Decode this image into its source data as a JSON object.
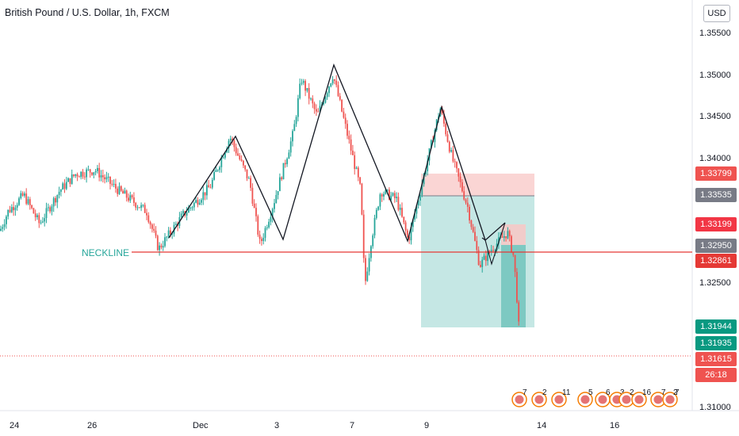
{
  "chart_data": {
    "type": "candlestick",
    "title": "British Pound / U.S. Dollar, 1h, FXCM",
    "currency": "USD",
    "ylim": [
      1.31,
      1.356
    ],
    "yticks": [
      "1.35500",
      "1.35000",
      "1.34500",
      "1.34000",
      "1.32500",
      "1.31000"
    ],
    "xticks": [
      "24",
      "26",
      "Dec",
      "3",
      "7",
      "9",
      "14",
      "16"
    ],
    "price_labels": [
      {
        "value": "1.33799",
        "kind": "stop"
      },
      {
        "value": "1.33535",
        "kind": "entry"
      },
      {
        "value": "1.33199",
        "kind": "level"
      },
      {
        "value": "1.32950",
        "kind": "close"
      },
      {
        "value": "1.32861",
        "kind": "neckline"
      },
      {
        "value": "1.31944",
        "kind": "target"
      },
      {
        "value": "1.31935",
        "kind": "target2"
      },
      {
        "value": "1.31615",
        "kind": "current"
      },
      {
        "value": "26:18",
        "kind": "countdown"
      }
    ],
    "annotations": {
      "neckline": "NECKLINE"
    },
    "neckline_price": 1.32861,
    "current_price": 1.31615,
    "pattern_points": [
      [
        1.3293,
        1.3373
      ],
      [
        1.3427,
        1.3293
      ],
      [
        1.3293,
        1.3513
      ],
      [
        1.3513,
        1.3388
      ],
      [
        1.3388,
        1.33
      ],
      [
        1.33,
        1.3463
      ],
      [
        1.3463,
        1.3316
      ],
      [
        1.3316,
        1.3268
      ],
      [
        1.3268,
        1.3311
      ]
    ],
    "event_badges": [
      "7",
      "2",
      "11",
      "5",
      "6",
      "3",
      "2",
      "16",
      "7",
      "2",
      "7"
    ]
  },
  "colors": {
    "up": "#26a69a",
    "down": "#ef5350",
    "neckline": "#e53935",
    "stop_zone": "#f8c7c6",
    "target_zone": "#b2dfdb",
    "grid": "#f0f3fa"
  }
}
